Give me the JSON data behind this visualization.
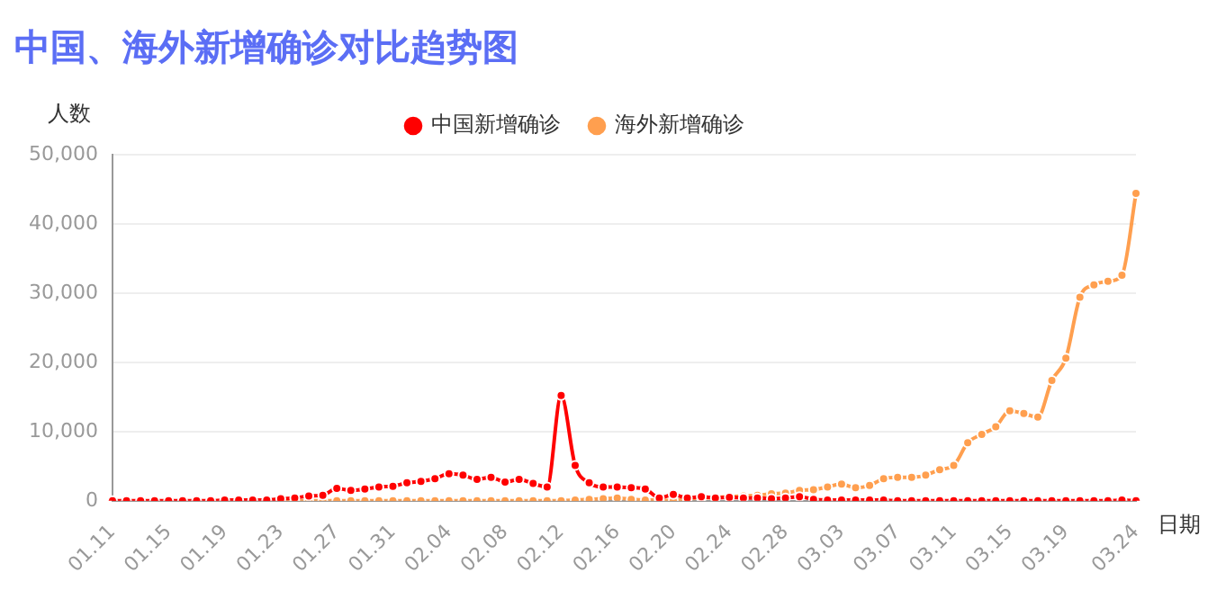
{
  "chart_data": {
    "type": "line",
    "title": "中国、海外新增确诊对比趋势图",
    "xlabel": "日期",
    "ylabel": "人数",
    "categories": [
      "01.11",
      null,
      null,
      null,
      "01.15",
      null,
      null,
      null,
      "01.19",
      null,
      null,
      null,
      "01.23",
      null,
      null,
      null,
      "01.27",
      null,
      null,
      null,
      "01.31",
      null,
      null,
      null,
      "02.04",
      null,
      null,
      null,
      "02.08",
      null,
      null,
      null,
      "02.12",
      null,
      null,
      null,
      "02.16",
      null,
      null,
      null,
      "02.20",
      null,
      null,
      null,
      "02.24",
      null,
      null,
      null,
      "02.28",
      null,
      null,
      null,
      "03.03",
      null,
      null,
      null,
      "03.07",
      null,
      null,
      null,
      "03.11",
      null,
      null,
      null,
      "03.15",
      null,
      null,
      null,
      "03.19",
      null,
      null,
      null,
      null,
      "03.24"
    ],
    "series": [
      {
        "name": "中国新增确诊",
        "color": "#ff0000",
        "values": [
          0,
          0,
          0,
          0,
          0,
          0,
          0,
          0,
          100,
          100,
          100,
          100,
          300,
          400,
          700,
          800,
          1800,
          1500,
          1700,
          2000,
          2100,
          2600,
          2800,
          3200,
          3900,
          3700,
          3100,
          3400,
          2700,
          3100,
          2500,
          2000,
          15200,
          5100,
          2600,
          2000,
          2000,
          1900,
          1700,
          400,
          900,
          400,
          600,
          400,
          500,
          400,
          400,
          300,
          400,
          600,
          200,
          100,
          100,
          100,
          100,
          100,
          0,
          0,
          0,
          0,
          0,
          0,
          0,
          0,
          0,
          0,
          0,
          0,
          0,
          0,
          0,
          0,
          100,
          0
        ]
      },
      {
        "name": "海外新增确诊",
        "color": "#ff9f4f",
        "values": [
          null,
          null,
          null,
          null,
          null,
          null,
          null,
          null,
          null,
          null,
          null,
          null,
          0,
          0,
          0,
          0,
          0,
          0,
          0,
          0,
          0,
          0,
          0,
          0,
          0,
          0,
          0,
          0,
          0,
          0,
          0,
          0,
          0,
          100,
          200,
          300,
          400,
          200,
          100,
          100,
          0,
          300,
          400,
          500,
          600,
          700,
          800,
          1000,
          1100,
          1500,
          1600,
          2000,
          2400,
          1900,
          2200,
          3200,
          3400,
          3400,
          3700,
          4500,
          5100,
          8400,
          9600,
          10700,
          13000,
          12600,
          12100,
          17400,
          20600,
          29400,
          31200,
          31700,
          32600,
          44400
        ]
      }
    ],
    "ylim": [
      0,
      50000
    ],
    "yticks": [
      0,
      {
        "value": 10000,
        "label": "10,000"
      },
      {
        "value": 20000,
        "label": "20,000"
      },
      {
        "value": 30000,
        "label": "30,000"
      },
      {
        "value": 40000,
        "label": "40,000"
      },
      {
        "value": 50000,
        "label": "50,000"
      }
    ],
    "grid": "y",
    "legend": "top",
    "marker": "circle",
    "line_style": "solid"
  }
}
